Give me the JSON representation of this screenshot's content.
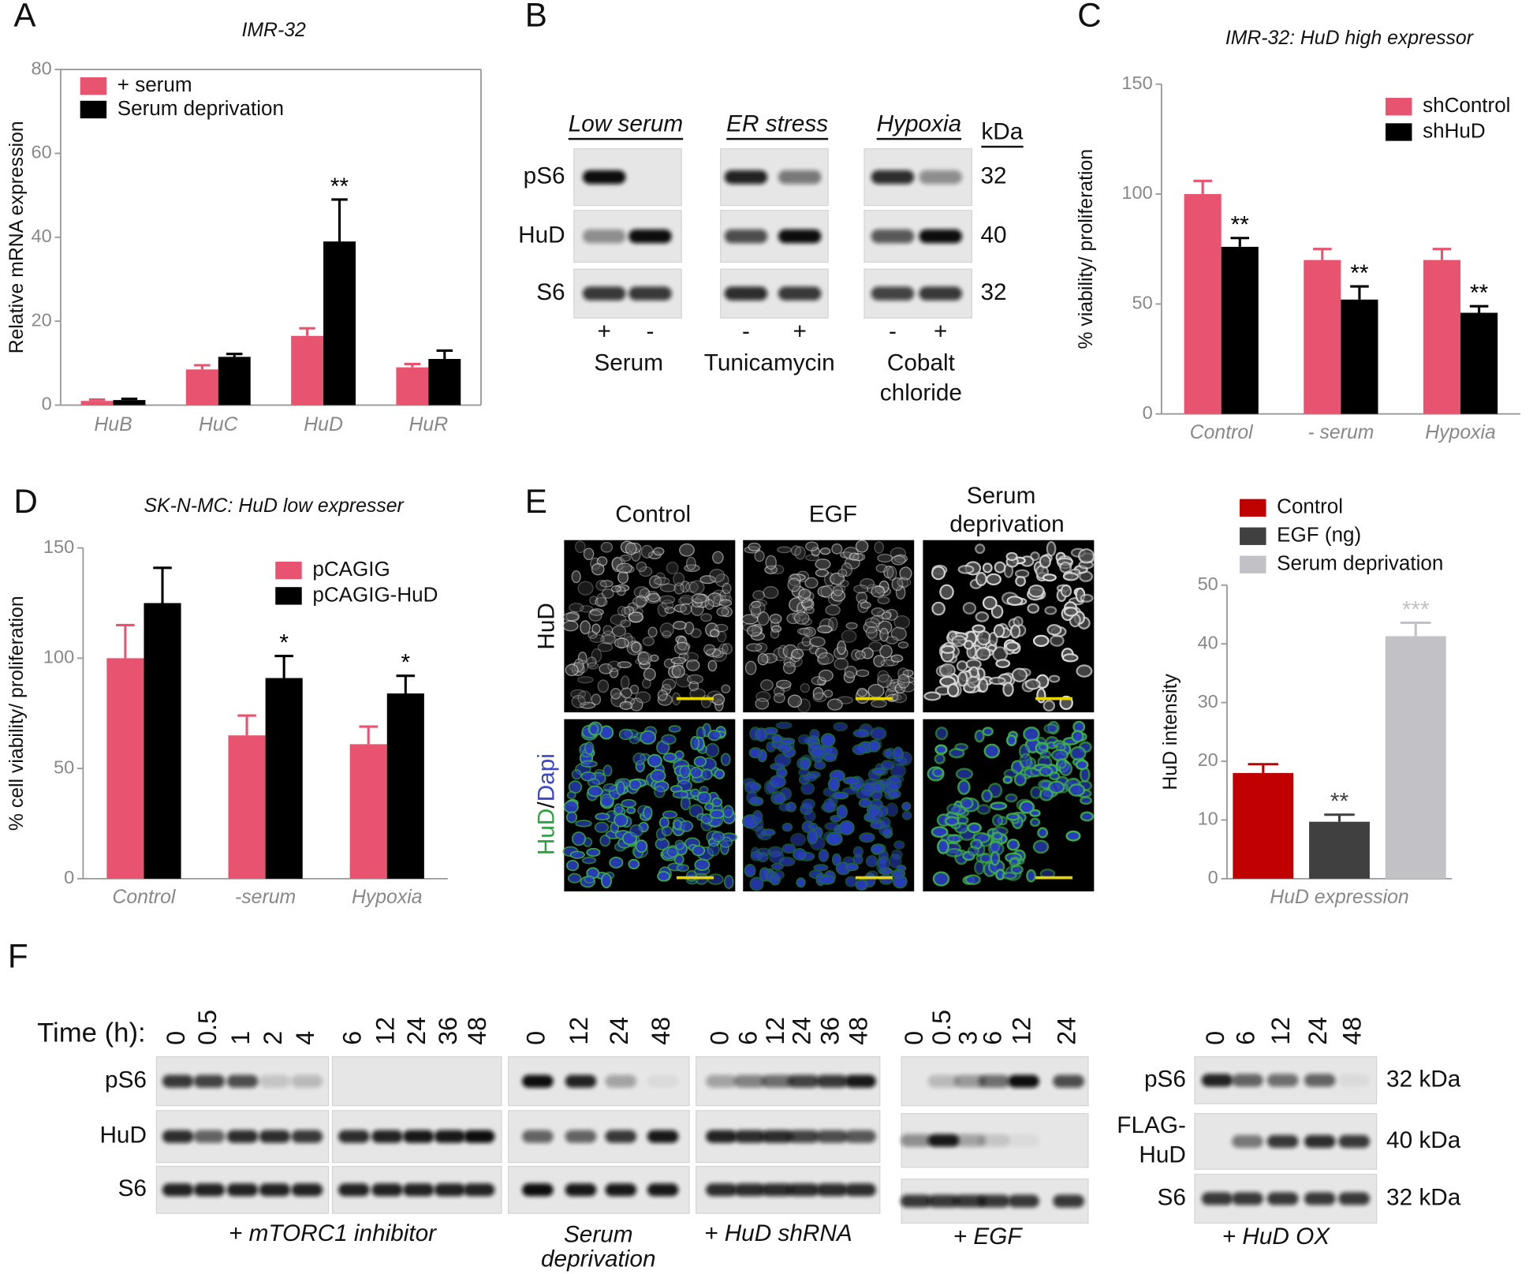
{
  "panel_labels": [
    "A",
    "B",
    "C",
    "D",
    "E",
    "F"
  ],
  "chart_data": [
    {
      "type": "bar",
      "title": "IMR-32",
      "y_label": "Relative mRNA expression",
      "categories": [
        "HuB",
        "HuC",
        "HuD",
        "HuR"
      ],
      "series": [
        {
          "name": "+ serum",
          "color": "#e8546f",
          "values": [
            1,
            8.5,
            16.5,
            9
          ],
          "errors": [
            0.3,
            1,
            1.8,
            0.8
          ],
          "sig": [
            null,
            null,
            null,
            null
          ]
        },
        {
          "name": "Serum deprivation",
          "color": "#000000",
          "values": [
            1.2,
            11.5,
            39,
            11
          ],
          "errors": [
            0.3,
            0.7,
            10,
            2
          ],
          "sig": [
            null,
            null,
            "**",
            null
          ]
        }
      ],
      "ylim": [
        0,
        80
      ],
      "yticks": [
        0,
        20,
        40,
        60,
        80
      ],
      "legend": "upper left",
      "box": true
    },
    {
      "type": "bar",
      "title": "IMR-32: HuD high expressor",
      "y_label": "% viability/ proliferation",
      "categories": [
        "Control",
        "- serum",
        "Hypoxia"
      ],
      "series": [
        {
          "name": "shControl",
          "color": "#e8546f",
          "values": [
            100,
            70,
            70
          ],
          "errors": [
            6,
            5,
            5
          ],
          "sig": [
            null,
            null,
            null
          ]
        },
        {
          "name": "shHuD",
          "color": "#000000",
          "values": [
            76,
            52,
            46
          ],
          "errors": [
            4,
            6,
            3
          ],
          "sig": [
            "**",
            "**",
            "**"
          ]
        }
      ],
      "ylim": [
        0,
        150
      ],
      "yticks": [
        0,
        50,
        100,
        150
      ],
      "legend": "upper right",
      "box": false
    },
    {
      "type": "bar",
      "title": "SK-N-MC: HuD low expresser",
      "y_label": "% cell viability/ proliferation",
      "categories": [
        "Control",
        "-serum",
        "Hypoxia"
      ],
      "series": [
        {
          "name": "pCAGIG",
          "color": "#e8546f",
          "values": [
            100,
            65,
            61
          ],
          "errors": [
            15,
            9,
            8
          ],
          "sig": [
            null,
            null,
            null
          ]
        },
        {
          "name": "pCAGIG-HuD",
          "color": "#000000",
          "values": [
            125,
            91,
            84
          ],
          "errors": [
            16,
            10,
            8
          ],
          "sig": [
            null,
            "*",
            "*"
          ]
        }
      ],
      "ylim": [
        0,
        150
      ],
      "yticks": [
        0,
        50,
        100,
        150
      ],
      "legend": "upper right",
      "box": false
    },
    {
      "type": "bar",
      "y_label": "HuD intensity",
      "categories": [
        "HuD expression"
      ],
      "series": [
        {
          "name": "Control",
          "color": "#c00000",
          "values": [
            18
          ],
          "errors": [
            1.5
          ],
          "sig": [
            null
          ]
        },
        {
          "name": "EGF (ng)",
          "color": "#404040",
          "values": [
            9.7
          ],
          "errors": [
            1.2
          ],
          "sig": [
            "**"
          ]
        },
        {
          "name": "Serum deprivation",
          "color": "#c2c2c6",
          "values": [
            41.3
          ],
          "errors": [
            2.3
          ],
          "sig": [
            "***"
          ]
        }
      ],
      "ylim": [
        0,
        50
      ],
      "yticks": [
        0,
        10,
        20,
        30,
        40,
        50
      ],
      "legend": "top",
      "box": false
    }
  ],
  "blot_b": {
    "groups": [
      {
        "heading": "Low serum",
        "signs": [
          "+",
          "-"
        ],
        "treatment": [
          "Serum"
        ]
      },
      {
        "heading": "ER stress",
        "signs": [
          "-",
          "+"
        ],
        "treatment": [
          "Tunicamycin"
        ]
      },
      {
        "heading": "Hypoxia",
        "signs": [
          "-",
          "+"
        ],
        "treatment": [
          "Cobalt",
          "chloride"
        ]
      }
    ],
    "rows": [
      "pS6",
      "HuD",
      "S6"
    ],
    "unit": "kDa",
    "sizes": [
      32,
      40,
      32
    ]
  },
  "panel_e_images": {
    "columns": [
      [
        "Control"
      ],
      [
        "EGF"
      ],
      [
        "Serum",
        "deprivation"
      ]
    ],
    "rows": [
      [
        "HuD"
      ],
      [
        "HuD",
        "/",
        "Dapi"
      ]
    ]
  },
  "blot_f": {
    "time_label": "Time (h):",
    "row_labels": [
      "pS6",
      "HuD",
      "S6"
    ],
    "groups": [
      {
        "times": [
          0,
          0.5,
          1,
          2,
          4
        ],
        "caption": [
          "+ mTORC1 inhibitor"
        ]
      },
      {
        "times": [
          6,
          12,
          24,
          36,
          48
        ],
        "caption": null
      },
      {
        "times": [
          0,
          12,
          24,
          48
        ],
        "caption": [
          "Serum",
          "deprivation"
        ]
      },
      {
        "times": [
          0,
          6,
          12,
          24,
          36,
          48
        ],
        "caption": [
          "+ HuD shRNA"
        ]
      },
      {
        "times": [
          0,
          0.5,
          3,
          6,
          12,
          24
        ],
        "caption": [
          "+ EGF"
        ]
      },
      {
        "times": [
          0,
          6,
          12,
          24,
          48
        ],
        "caption": [
          "+ HuD OX"
        ]
      }
    ],
    "ox_rows": [
      [
        "pS6"
      ],
      [
        "FLAG-",
        "HuD"
      ],
      [
        "S6"
      ]
    ],
    "ox_sizes": [
      "32 kDa",
      "40 kDa",
      "32 kDa"
    ]
  }
}
